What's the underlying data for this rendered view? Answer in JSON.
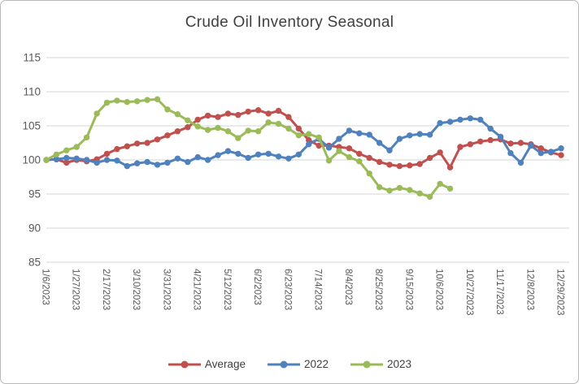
{
  "title": "Crude Oil Inventory Seasonal",
  "colors": {
    "grid": "#d6d6d6",
    "axis_text": "#595959",
    "title_text": "#404040",
    "window_border": "#b9b9b9",
    "background": "#ffffff"
  },
  "chart_data": {
    "type": "line",
    "title": "Crude Oil Inventory Seasonal",
    "grid": "horizontal",
    "legend_position": "bottom",
    "ylim": [
      85,
      115
    ],
    "y_ticks": [
      85,
      90,
      95,
      100,
      105,
      110,
      115
    ],
    "x_tick_every": 3,
    "x": [
      "1/6/2023",
      "1/13/2023",
      "1/20/2023",
      "1/27/2023",
      "2/3/2023",
      "2/10/2023",
      "2/17/2023",
      "2/24/2023",
      "3/3/2023",
      "3/10/2023",
      "3/17/2023",
      "3/24/2023",
      "3/31/2023",
      "4/7/2023",
      "4/14/2023",
      "4/21/2023",
      "4/28/2023",
      "5/5/2023",
      "5/12/2023",
      "5/19/2023",
      "5/26/2023",
      "6/2/2023",
      "6/9/2023",
      "6/16/2023",
      "6/23/2023",
      "6/30/2023",
      "7/7/2023",
      "7/14/2023",
      "7/21/2023",
      "7/28/2023",
      "8/4/2023",
      "8/11/2023",
      "8/18/2023",
      "8/25/2023",
      "9/1/2023",
      "9/8/2023",
      "9/15/2023",
      "9/22/2023",
      "9/29/2023",
      "10/6/2023",
      "10/13/2023",
      "10/20/2023",
      "10/27/2023",
      "11/3/2023",
      "11/10/2023",
      "11/17/2023",
      "11/24/2023",
      "12/1/2023",
      "12/8/2023",
      "12/15/2023",
      "12/22/2023",
      "12/29/2023"
    ],
    "x_tick_labels": [
      "1/6/2023",
      "1/27/2023",
      "2/17/2023",
      "3/10/2023",
      "3/31/2023",
      "4/21/2023",
      "5/12/2023",
      "6/2/2023",
      "6/23/2023",
      "7/14/2023",
      "8/4/2023",
      "8/25/2023",
      "9/15/2023",
      "10/6/2023",
      "10/27/2023",
      "11/17/2023",
      "12/8/2023",
      "12/29/2023"
    ],
    "series": [
      {
        "name": "Average",
        "color": "#C0504D",
        "values": [
          100.0,
          100.1,
          99.6,
          100.0,
          99.8,
          100.1,
          100.9,
          101.6,
          102.0,
          102.4,
          102.5,
          103.0,
          103.6,
          104.2,
          104.8,
          105.9,
          106.5,
          106.3,
          106.8,
          106.6,
          107.1,
          107.3,
          106.8,
          107.2,
          106.3,
          104.6,
          102.9,
          102.1,
          102.1,
          101.9,
          101.7,
          100.9,
          100.3,
          99.7,
          99.3,
          99.1,
          99.2,
          99.4,
          100.3,
          101.1,
          98.9,
          101.9,
          102.3,
          102.7,
          102.9,
          103.0,
          102.4,
          102.5,
          102.3,
          101.7,
          101.1,
          100.7
        ]
      },
      {
        "name": "2022",
        "color": "#4F81BD",
        "values": [
          100.0,
          100.1,
          100.3,
          100.2,
          100.0,
          99.6,
          100.0,
          99.9,
          99.1,
          99.5,
          99.7,
          99.3,
          99.6,
          100.2,
          99.7,
          100.4,
          100.0,
          100.7,
          101.3,
          100.9,
          100.3,
          100.8,
          100.9,
          100.5,
          100.2,
          100.8,
          102.3,
          103.1,
          101.8,
          103.1,
          104.3,
          103.9,
          103.7,
          102.5,
          101.4,
          103.1,
          103.6,
          103.8,
          103.7,
          105.4,
          105.6,
          105.9,
          106.1,
          105.9,
          104.6,
          103.4,
          101.0,
          99.6,
          102.1,
          101.0,
          101.2,
          101.7
        ]
      },
      {
        "name": "2023",
        "color": "#9BBB59",
        "values": [
          100.0,
          100.8,
          101.4,
          101.9,
          103.3,
          106.8,
          108.4,
          108.7,
          108.5,
          108.6,
          108.8,
          108.9,
          107.4,
          106.7,
          105.8,
          104.9,
          104.4,
          104.7,
          104.2,
          103.2,
          104.3,
          104.2,
          105.5,
          105.3,
          104.6,
          103.6,
          103.8,
          103.3,
          99.9,
          101.3,
          100.4,
          99.8,
          98.0,
          96.0,
          95.5,
          95.9,
          95.6,
          95.1,
          94.6,
          96.5,
          95.8,
          null,
          null,
          null,
          null,
          null,
          null,
          null,
          null,
          null,
          null,
          null
        ]
      }
    ]
  },
  "legend": {
    "items": [
      {
        "label": "Average",
        "color": "#C0504D"
      },
      {
        "label": "2022",
        "color": "#4F81BD"
      },
      {
        "label": "2023",
        "color": "#9BBB59"
      }
    ]
  }
}
